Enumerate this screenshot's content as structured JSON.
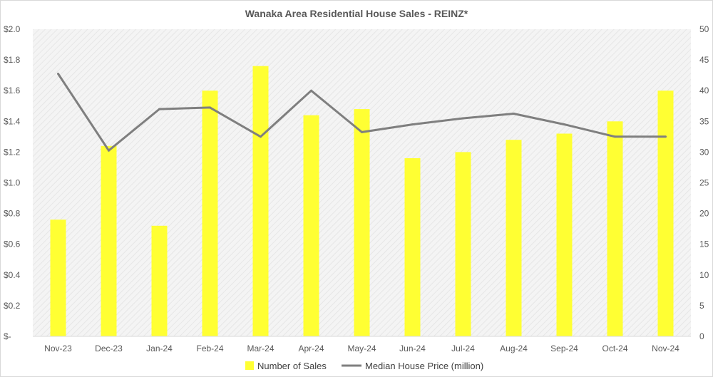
{
  "chart_data": {
    "type": "bar",
    "title": "Wanaka Area Residential House Sales - REINZ*",
    "categories": [
      "Nov-23",
      "Dec-23",
      "Jan-24",
      "Feb-24",
      "Mar-24",
      "Apr-24",
      "May-24",
      "Jun-24",
      "Jul-24",
      "Aug-24",
      "Sep-24",
      "Oct-24",
      "Nov-24"
    ],
    "series": [
      {
        "name": "Number of Sales",
        "type": "bar",
        "axis": "right",
        "color": "#ffff33",
        "values": [
          19,
          31,
          18,
          40,
          44,
          36,
          37,
          29,
          30,
          32,
          33,
          35,
          40
        ]
      },
      {
        "name": "Median House Price (million)",
        "type": "line",
        "axis": "left",
        "color": "#7f7f7f",
        "values": [
          1.71,
          1.21,
          1.48,
          1.49,
          1.3,
          1.6,
          1.33,
          1.38,
          1.42,
          1.45,
          1.38,
          1.3,
          1.3
        ]
      }
    ],
    "left_axis": {
      "ylim": [
        0,
        2.0
      ],
      "ticks": [
        0,
        0.2,
        0.4,
        0.6,
        0.8,
        1.0,
        1.2,
        1.4,
        1.6,
        1.8,
        2.0
      ],
      "tick_labels": [
        "$-",
        "$0.2",
        "$0.4",
        "$0.6",
        "$0.8",
        "$1.0",
        "$1.2",
        "$1.4",
        "$1.6",
        "$1.8",
        "$2.0"
      ]
    },
    "right_axis": {
      "ylim": [
        0,
        50
      ],
      "ticks": [
        0,
        5,
        10,
        15,
        20,
        25,
        30,
        35,
        40,
        45,
        50
      ],
      "tick_labels": [
        "0",
        "5",
        "10",
        "15",
        "20",
        "25",
        "30",
        "35",
        "40",
        "45",
        "50"
      ]
    },
    "grid": false,
    "legend_position": "bottom"
  }
}
